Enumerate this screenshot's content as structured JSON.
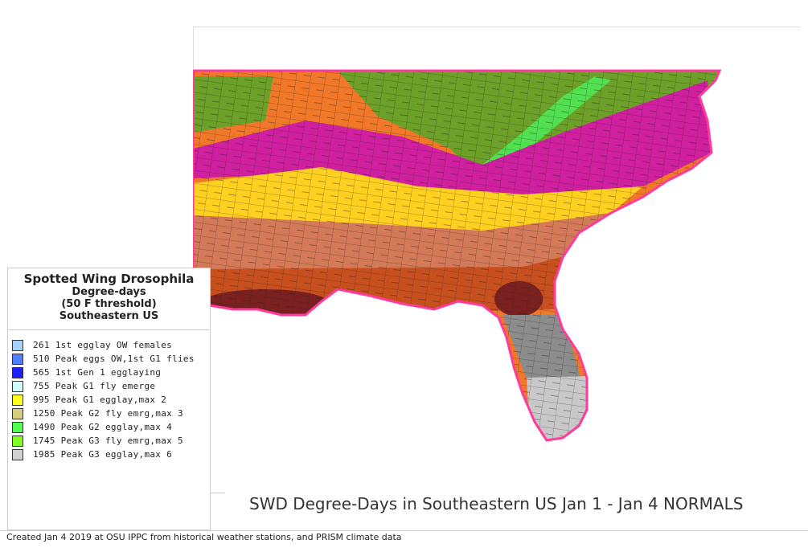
{
  "legend": {
    "title": "Spotted Wing Drosophila",
    "subtitle_1": "Degree-days",
    "subtitle_2": "(50 F threshold)",
    "subtitle_3": "Southeastern US",
    "items": [
      {
        "label": "261 1st egglay OW females",
        "color": "#a8d0ff"
      },
      {
        "label": "510 Peak eggs OW,1st G1 flies",
        "color": "#5080ff"
      },
      {
        "label": "565 1st Gen 1 egglaying",
        "color": "#2020ff"
      },
      {
        "label": "755 Peak G1 fly emerge",
        "color": "#d0ffff"
      },
      {
        "label": "995 Peak G1 egglay,max 2",
        "color": "#ffff20"
      },
      {
        "label": "1250 Peak G2 fly emrg,max 3",
        "color": "#d4d080"
      },
      {
        "label": "1490 Peak G2 egglay,max 4",
        "color": "#50ff50"
      },
      {
        "label": "1745 Peak G3 fly emrg,max 5",
        "color": "#80ff20"
      },
      {
        "label": "1985 Peak G3 egglay,max 6",
        "color": "#d0d0d0"
      }
    ]
  },
  "map_title": "SWD Degree-Days in Southeastern US Jan 1 - Jan 4 NORMALS",
  "footer": "Created Jan 4 2019 at OSU IPPC from  historical weather stations, and PRISM climate data",
  "map_colors": {
    "orange": "#f07828",
    "olive": "#6ca028",
    "magenta": "#d020a0",
    "yellow": "#ffd020",
    "tan_brown": "#d47a58",
    "rust": "#c8501e",
    "maroon": "#7a2020",
    "gray": "#8c8c8c",
    "light_gray": "#c8c8c8",
    "light_green": "#50e050",
    "coast": "#ff3c9c"
  }
}
